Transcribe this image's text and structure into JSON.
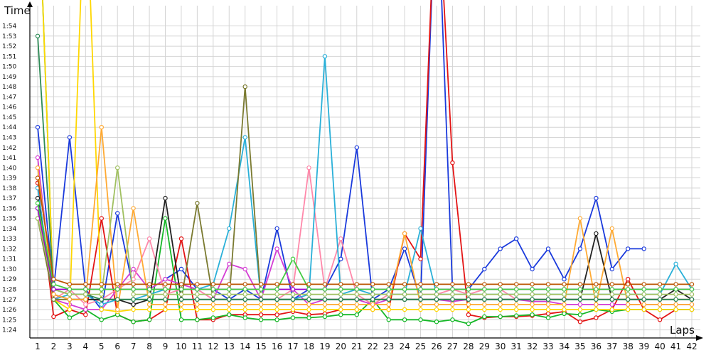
{
  "chart_data": {
    "type": "line",
    "ylabel": "Time",
    "xlabel": "Laps",
    "x": [
      1,
      2,
      3,
      4,
      5,
      6,
      7,
      8,
      9,
      10,
      11,
      12,
      13,
      14,
      15,
      16,
      17,
      18,
      19,
      20,
      21,
      22,
      23,
      24,
      25,
      26,
      27,
      28,
      29,
      30,
      31,
      32,
      33,
      34,
      35,
      36,
      37,
      38,
      39,
      40,
      41,
      42
    ],
    "x_ticks": [
      "1",
      "2",
      "3",
      "4",
      "5",
      "6",
      "7",
      "8",
      "9",
      "10",
      "11",
      "12",
      "13",
      "14",
      "15",
      "16",
      "17",
      "18",
      "19",
      "20",
      "21",
      "22",
      "23",
      "24",
      "25",
      "26",
      "27",
      "28",
      "29",
      "30",
      "31",
      "32",
      "33",
      "34",
      "35",
      "36",
      "37",
      "38",
      "39",
      "40",
      "41",
      "42"
    ],
    "y_unit": "seconds (lap time m:ss)",
    "ylim": [
      83.2,
      116
    ],
    "y_ticks": [
      "1:24",
      "1:25",
      "1:26",
      "1:27",
      "1:28",
      "1:29",
      "1:30",
      "1:31",
      "1:32",
      "1:33",
      "1:34",
      "1:35",
      "1:36",
      "1:37",
      "1:38",
      "1:39",
      "1:40",
      "1:41",
      "1:42",
      "1:43",
      "1:44",
      "1:45",
      "1:46",
      "1:47",
      "1:48",
      "1:49",
      "1:50",
      "1:51",
      "1:52",
      "1:53",
      "1:54"
    ],
    "y_tick_values": [
      84,
      85,
      86,
      87,
      88,
      89,
      90,
      91,
      92,
      93,
      94,
      95,
      96,
      97,
      98,
      99,
      100,
      101,
      102,
      103,
      104,
      105,
      106,
      107,
      108,
      109,
      110,
      111,
      112,
      113,
      114
    ],
    "grid": true,
    "legend": "none",
    "series": [
      {
        "color": "#1a3adc",
        "values": [
          104,
          88,
          103,
          88,
          86,
          95.5,
          88,
          88,
          89,
          90,
          88,
          88,
          87,
          88,
          87,
          94,
          87,
          88,
          88,
          91,
          102,
          87,
          88,
          92,
          87,
          130,
          88,
          88,
          90,
          92,
          93,
          90,
          92,
          89,
          92,
          97,
          90,
          92,
          92,
          null,
          null,
          null
        ]
      },
      {
        "color": "#e31414",
        "values": [
          98.5,
          85.3,
          86,
          85.5,
          95,
          85.5,
          84.8,
          85,
          86,
          93,
          85,
          85,
          85.5,
          85.5,
          85.5,
          85.5,
          85.8,
          85.5,
          85.6,
          86,
          86,
          86,
          86,
          93.5,
          91,
          130,
          100.5,
          85.5,
          85.2,
          85.3,
          85.3,
          85.4,
          85.6,
          85.8,
          84.8,
          85.2,
          86,
          89,
          86,
          85,
          86,
          86
        ]
      },
      {
        "color": "#16b828",
        "values": [
          130,
          87,
          85.2,
          86,
          85,
          85.5,
          84.8,
          85,
          95,
          85,
          85,
          85.2,
          85.5,
          85.2,
          85,
          85,
          85.2,
          85.2,
          85.3,
          85.5,
          85.5,
          87,
          85,
          85,
          85,
          84.8,
          85,
          84.6,
          85.3,
          85.3,
          85.4,
          85.5,
          85.2,
          85.6,
          85.5,
          86,
          85.8,
          86,
          86,
          86,
          86,
          86
        ]
      },
      {
        "color": "#d43cd4",
        "values": [
          101,
          87,
          86.5,
          86,
          86,
          88,
          90,
          88,
          89,
          88.5,
          88,
          87,
          90.5,
          90,
          87,
          92,
          88,
          86.5,
          87,
          87,
          87,
          86.5,
          87,
          87,
          87,
          87,
          86.8,
          87,
          87,
          87,
          87,
          86.8,
          86.8,
          86.5,
          86.5,
          86.5,
          86.5,
          86.5,
          86.5,
          86.5,
          86.5,
          86.5
        ]
      },
      {
        "color": "#ffd700",
        "values": [
          130,
          87,
          86,
          130,
          86,
          85.8,
          86,
          86,
          86,
          86,
          86,
          86,
          86,
          86,
          86,
          86,
          86,
          86,
          86,
          86,
          86,
          86,
          86,
          86,
          86,
          86,
          86,
          86,
          86,
          86,
          86,
          86,
          86,
          86,
          86,
          86,
          86,
          86,
          86,
          86,
          86,
          86
        ]
      },
      {
        "color": "#ff88aa",
        "values": [
          96,
          87,
          88,
          86.5,
          87,
          88,
          89,
          93,
          87.5,
          88,
          88,
          87,
          87,
          87,
          87,
          87,
          88,
          100,
          88,
          93,
          87.5,
          86.5,
          87.5,
          87.5,
          87.5,
          87.5,
          88,
          87.5,
          88,
          88,
          87,
          87,
          87,
          87,
          87,
          87,
          87,
          87,
          87,
          87,
          87,
          87
        ]
      },
      {
        "color": "#2ab0d8",
        "values": [
          98,
          87,
          87.5,
          87.5,
          86.5,
          87,
          87,
          87.5,
          88,
          88,
          88,
          88.5,
          94,
          103,
          87,
          87,
          87,
          87.5,
          111,
          87.5,
          88,
          87.5,
          87.5,
          87.5,
          94,
          87.5,
          87.5,
          87.5,
          87.5,
          87.5,
          87.5,
          87.5,
          87.5,
          87.5,
          87.5,
          87.5,
          87.5,
          87.5,
          87.5,
          87.5,
          90.5,
          88
        ]
      },
      {
        "color": "#7a7a30",
        "values": [
          95,
          87,
          87,
          87,
          87,
          87,
          87,
          87,
          87,
          87,
          96.5,
          87,
          87,
          108,
          87,
          87,
          87,
          87,
          87,
          87,
          87,
          87,
          87,
          87,
          87,
          87,
          87,
          87,
          87,
          87,
          87,
          87,
          87,
          87,
          87,
          87,
          87,
          87,
          87,
          87,
          87,
          87
        ]
      },
      {
        "color": "#222222",
        "values": [
          97,
          87.5,
          87,
          87,
          87,
          87,
          86.5,
          87,
          97,
          87,
          87,
          87,
          87,
          87,
          87,
          87,
          87,
          87,
          87,
          87,
          87,
          87,
          87,
          87,
          87,
          87,
          87,
          87,
          87,
          87,
          87,
          87,
          87,
          87,
          87,
          93.5,
          87,
          87,
          87,
          87,
          88,
          87
        ]
      },
      {
        "color": "#ffaa33",
        "values": [
          100,
          87.5,
          87,
          87,
          104,
          86,
          96,
          86.5,
          86.5,
          86.5,
          86.5,
          86.5,
          86.5,
          86.5,
          86.5,
          86.5,
          86.5,
          86.5,
          86.5,
          86.5,
          86.5,
          86.5,
          86.5,
          93.5,
          86.5,
          86.5,
          86.5,
          86.5,
          86.5,
          86.5,
          86.5,
          86.5,
          86.5,
          86.5,
          95,
          86.5,
          94,
          86.5,
          86.5,
          86.5,
          86.5,
          86.5
        ]
      },
      {
        "color": "#2e8b57",
        "values": [
          113,
          88,
          87.5,
          87.5,
          87,
          87,
          87,
          87,
          87,
          87,
          87,
          87,
          87,
          87,
          87,
          87,
          87,
          87,
          87,
          87,
          87,
          87,
          87,
          87,
          87,
          87,
          87,
          87,
          87,
          87,
          87,
          87,
          87,
          87,
          87,
          87,
          87,
          87,
          87,
          87,
          87,
          87
        ]
      },
      {
        "color": "#a0c060",
        "values": [
          95,
          88,
          87.5,
          87.5,
          87.5,
          100,
          87.5,
          87.5,
          87.5,
          87.5,
          87.5,
          87.5,
          87.5,
          87.5,
          87.5,
          87.5,
          87.5,
          87.5,
          87.5,
          87.5,
          87.5,
          87.5,
          87.5,
          87.5,
          87.5,
          87.5,
          87.5,
          87.5,
          87.5,
          87.5,
          87.5,
          87.5,
          87.5,
          87.5,
          87.5,
          87.5,
          87.5,
          87.5,
          87.5,
          87.5,
          87.5,
          87.5
        ]
      },
      {
        "color": "#9900cc",
        "values": [
          96,
          88,
          88,
          88,
          88,
          88,
          88,
          88,
          88,
          88,
          88,
          88,
          88,
          88,
          88,
          88,
          88,
          88,
          88,
          88,
          88,
          88,
          88,
          88,
          88,
          88,
          88,
          88,
          88,
          88,
          88,
          88,
          88,
          88,
          88,
          88,
          88,
          88,
          88,
          88,
          88,
          88
        ]
      },
      {
        "color": "#44cc44",
        "values": [
          96.5,
          88.5,
          88,
          88,
          88,
          88,
          88,
          88,
          88,
          88,
          88,
          88,
          88,
          88,
          88,
          88,
          91,
          88,
          88,
          88,
          88,
          88,
          88,
          88,
          88,
          88,
          88,
          88,
          88,
          88,
          88,
          88,
          88,
          88,
          88,
          88,
          88,
          88,
          88,
          88,
          88,
          88
        ]
      },
      {
        "color": "#bb5500",
        "values": [
          99,
          89,
          88.5,
          88.5,
          88.5,
          88.5,
          88.5,
          88.5,
          88.5,
          88.5,
          88.5,
          88.5,
          88.5,
          88.5,
          88.5,
          88.5,
          88.5,
          88.5,
          88.5,
          88.5,
          88.5,
          88.5,
          88.5,
          88.5,
          88.5,
          88.5,
          88.5,
          88.5,
          88.5,
          88.5,
          88.5,
          88.5,
          88.5,
          88.5,
          88.5,
          88.5,
          88.5,
          88.5,
          88.5,
          88.5,
          88.5,
          88.5
        ]
      }
    ]
  }
}
